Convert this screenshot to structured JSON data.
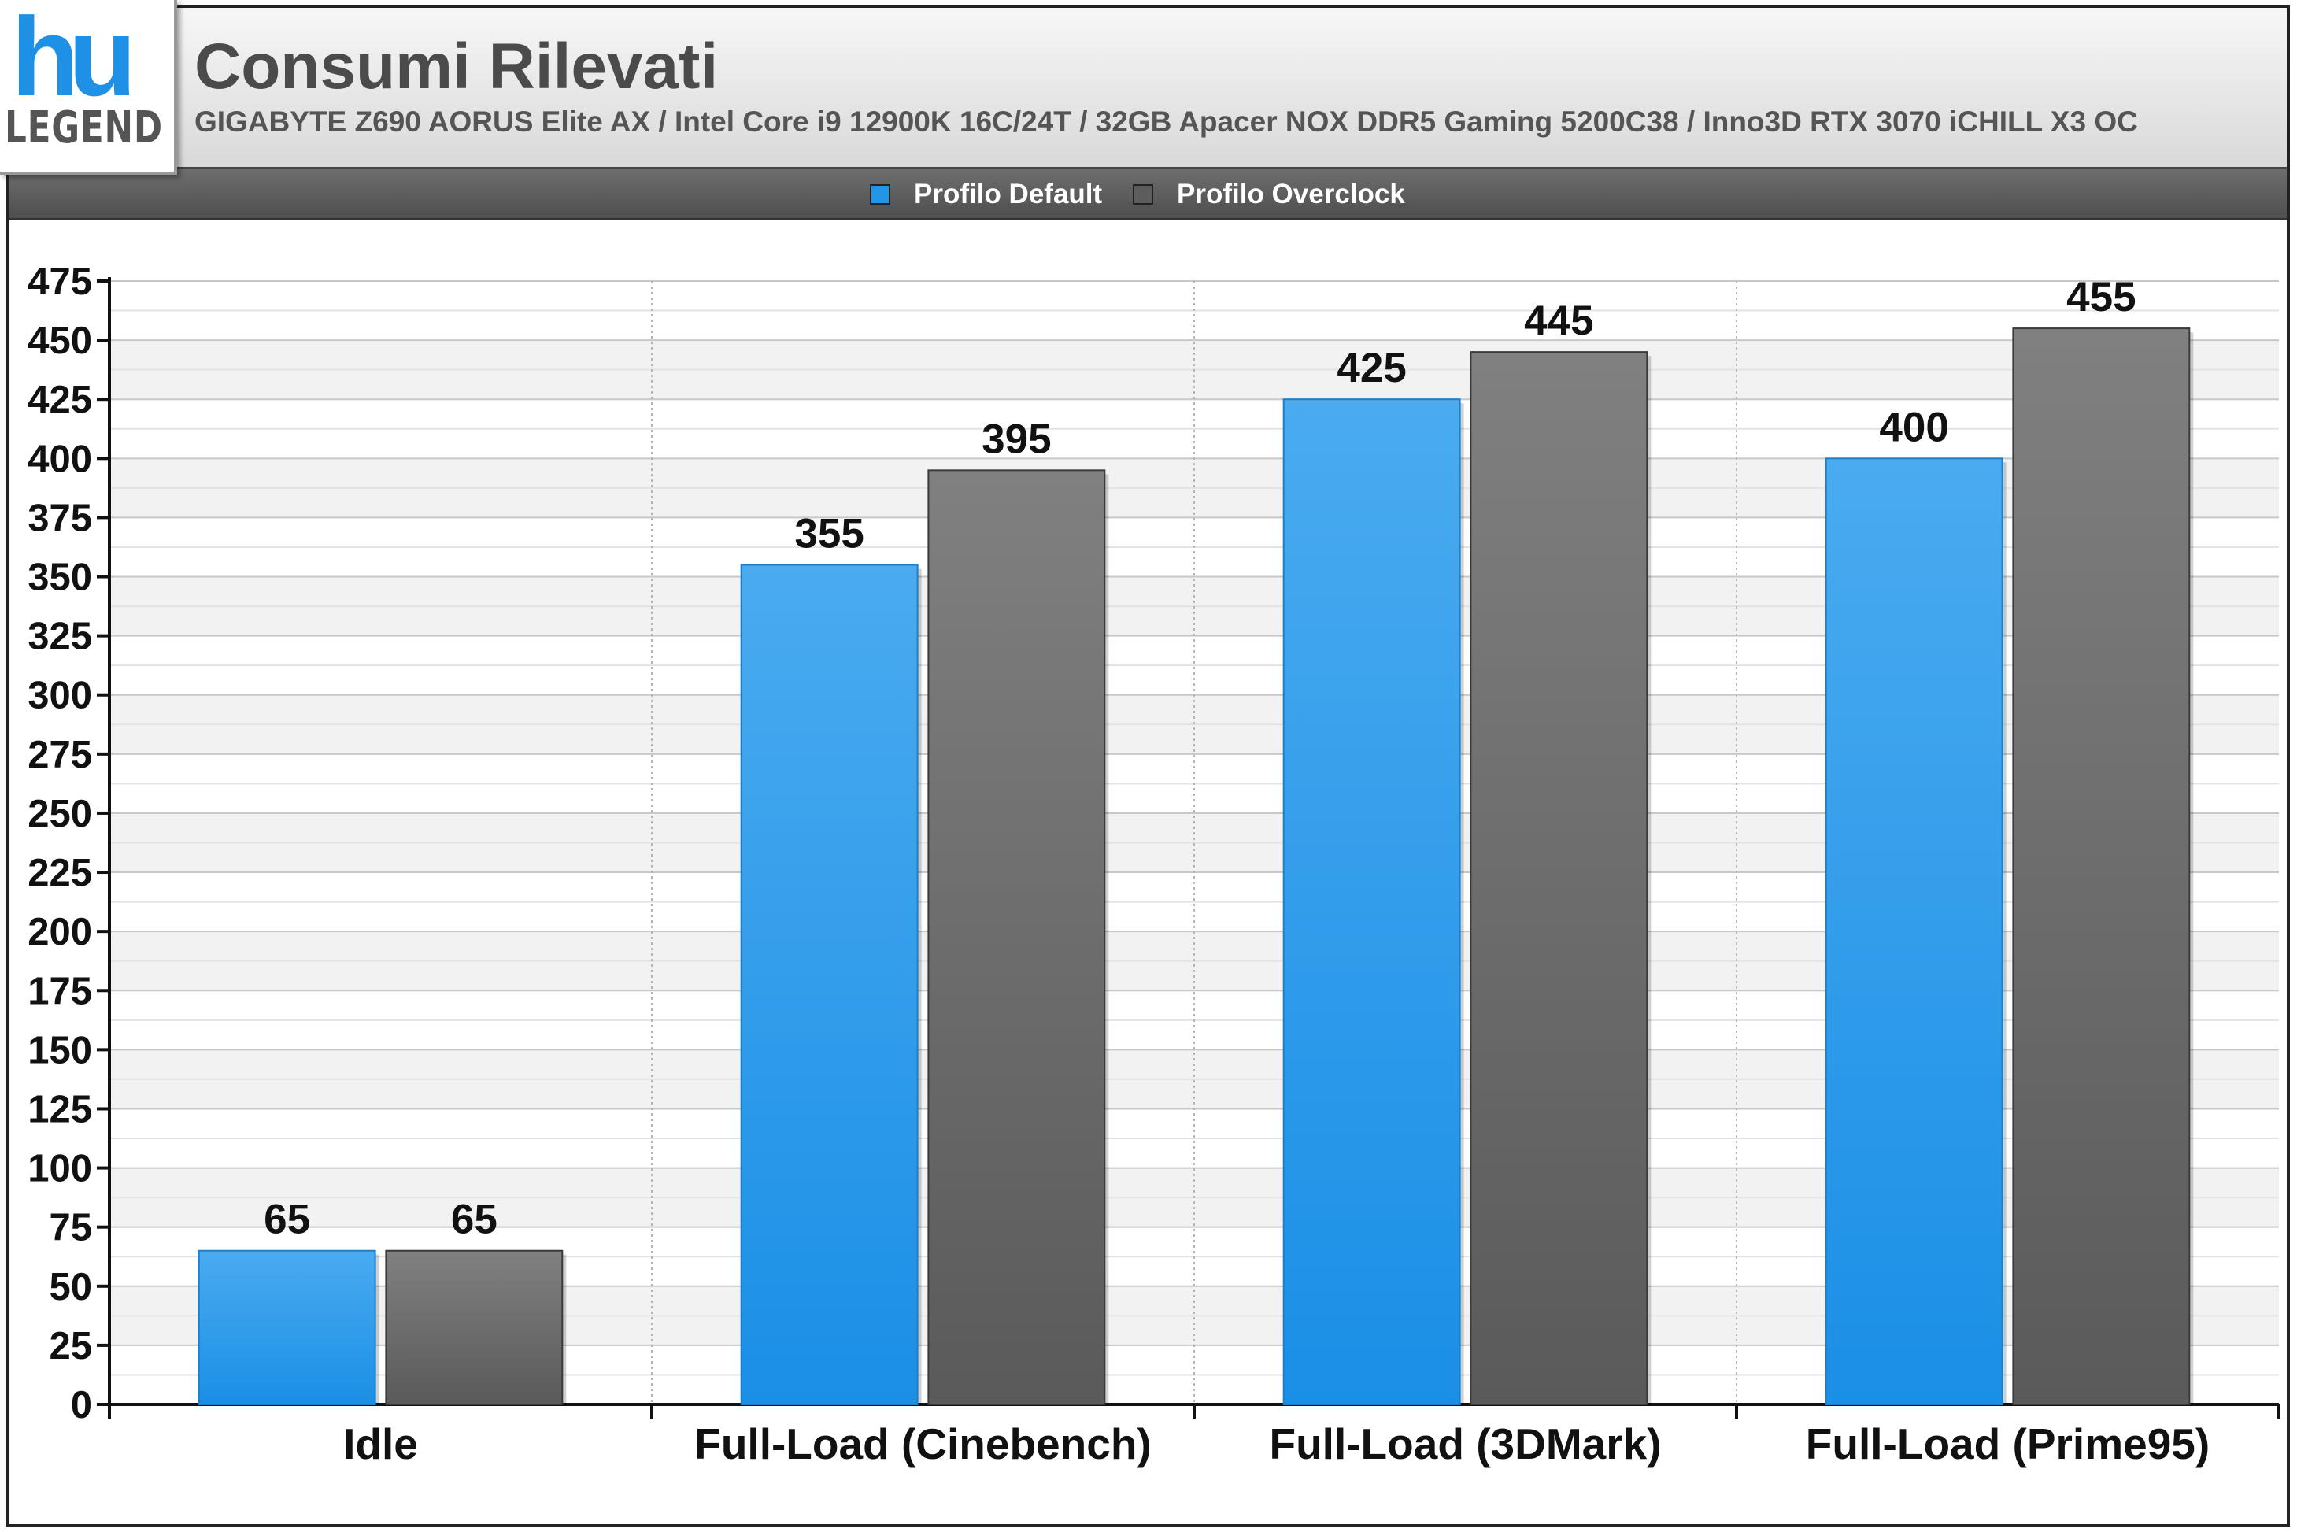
{
  "header": {
    "logo_mark": "hu",
    "logo_word": "LEGEND",
    "title": "Consumi Rilevati",
    "subtitle": "GIGABYTE Z690 AORUS Elite AX / Intel Core i9 12900K 16C/24T / 32GB Apacer NOX DDR5 Gaming 5200C38 / Inno3D RTX 3070 iCHILL X3 OC"
  },
  "legend": [
    {
      "label": "Profilo Default",
      "color": "#2196e8"
    },
    {
      "label": "Profilo Overclock",
      "color": "#5c5c5c"
    }
  ],
  "chart_data": {
    "type": "bar",
    "title": "Consumi Rilevati",
    "subtitle": "GIGABYTE Z690 AORUS Elite AX / Intel Core i9 12900K 16C/24T / 32GB Apacer NOX DDR5 Gaming 5200C38 / Inno3D RTX 3070 iCHILL X3 OC",
    "categories": [
      "Idle",
      "Full-Load (Cinebench)",
      "Full-Load (3DMark)",
      "Full-Load (Prime95)"
    ],
    "series": [
      {
        "name": "Profilo Default",
        "values": [
          65,
          355,
          425,
          400
        ],
        "color": "#2196e8"
      },
      {
        "name": "Profilo Overclock",
        "values": [
          65,
          395,
          445,
          455
        ],
        "color": "#5c5c5c"
      }
    ],
    "ylim": [
      0,
      475
    ],
    "yticks": [
      0,
      25,
      50,
      75,
      100,
      125,
      150,
      175,
      200,
      225,
      250,
      275,
      300,
      325,
      350,
      375,
      400,
      425,
      450,
      475
    ],
    "xlabel": "",
    "ylabel": "",
    "grid": true,
    "legend_position": "top-center"
  }
}
